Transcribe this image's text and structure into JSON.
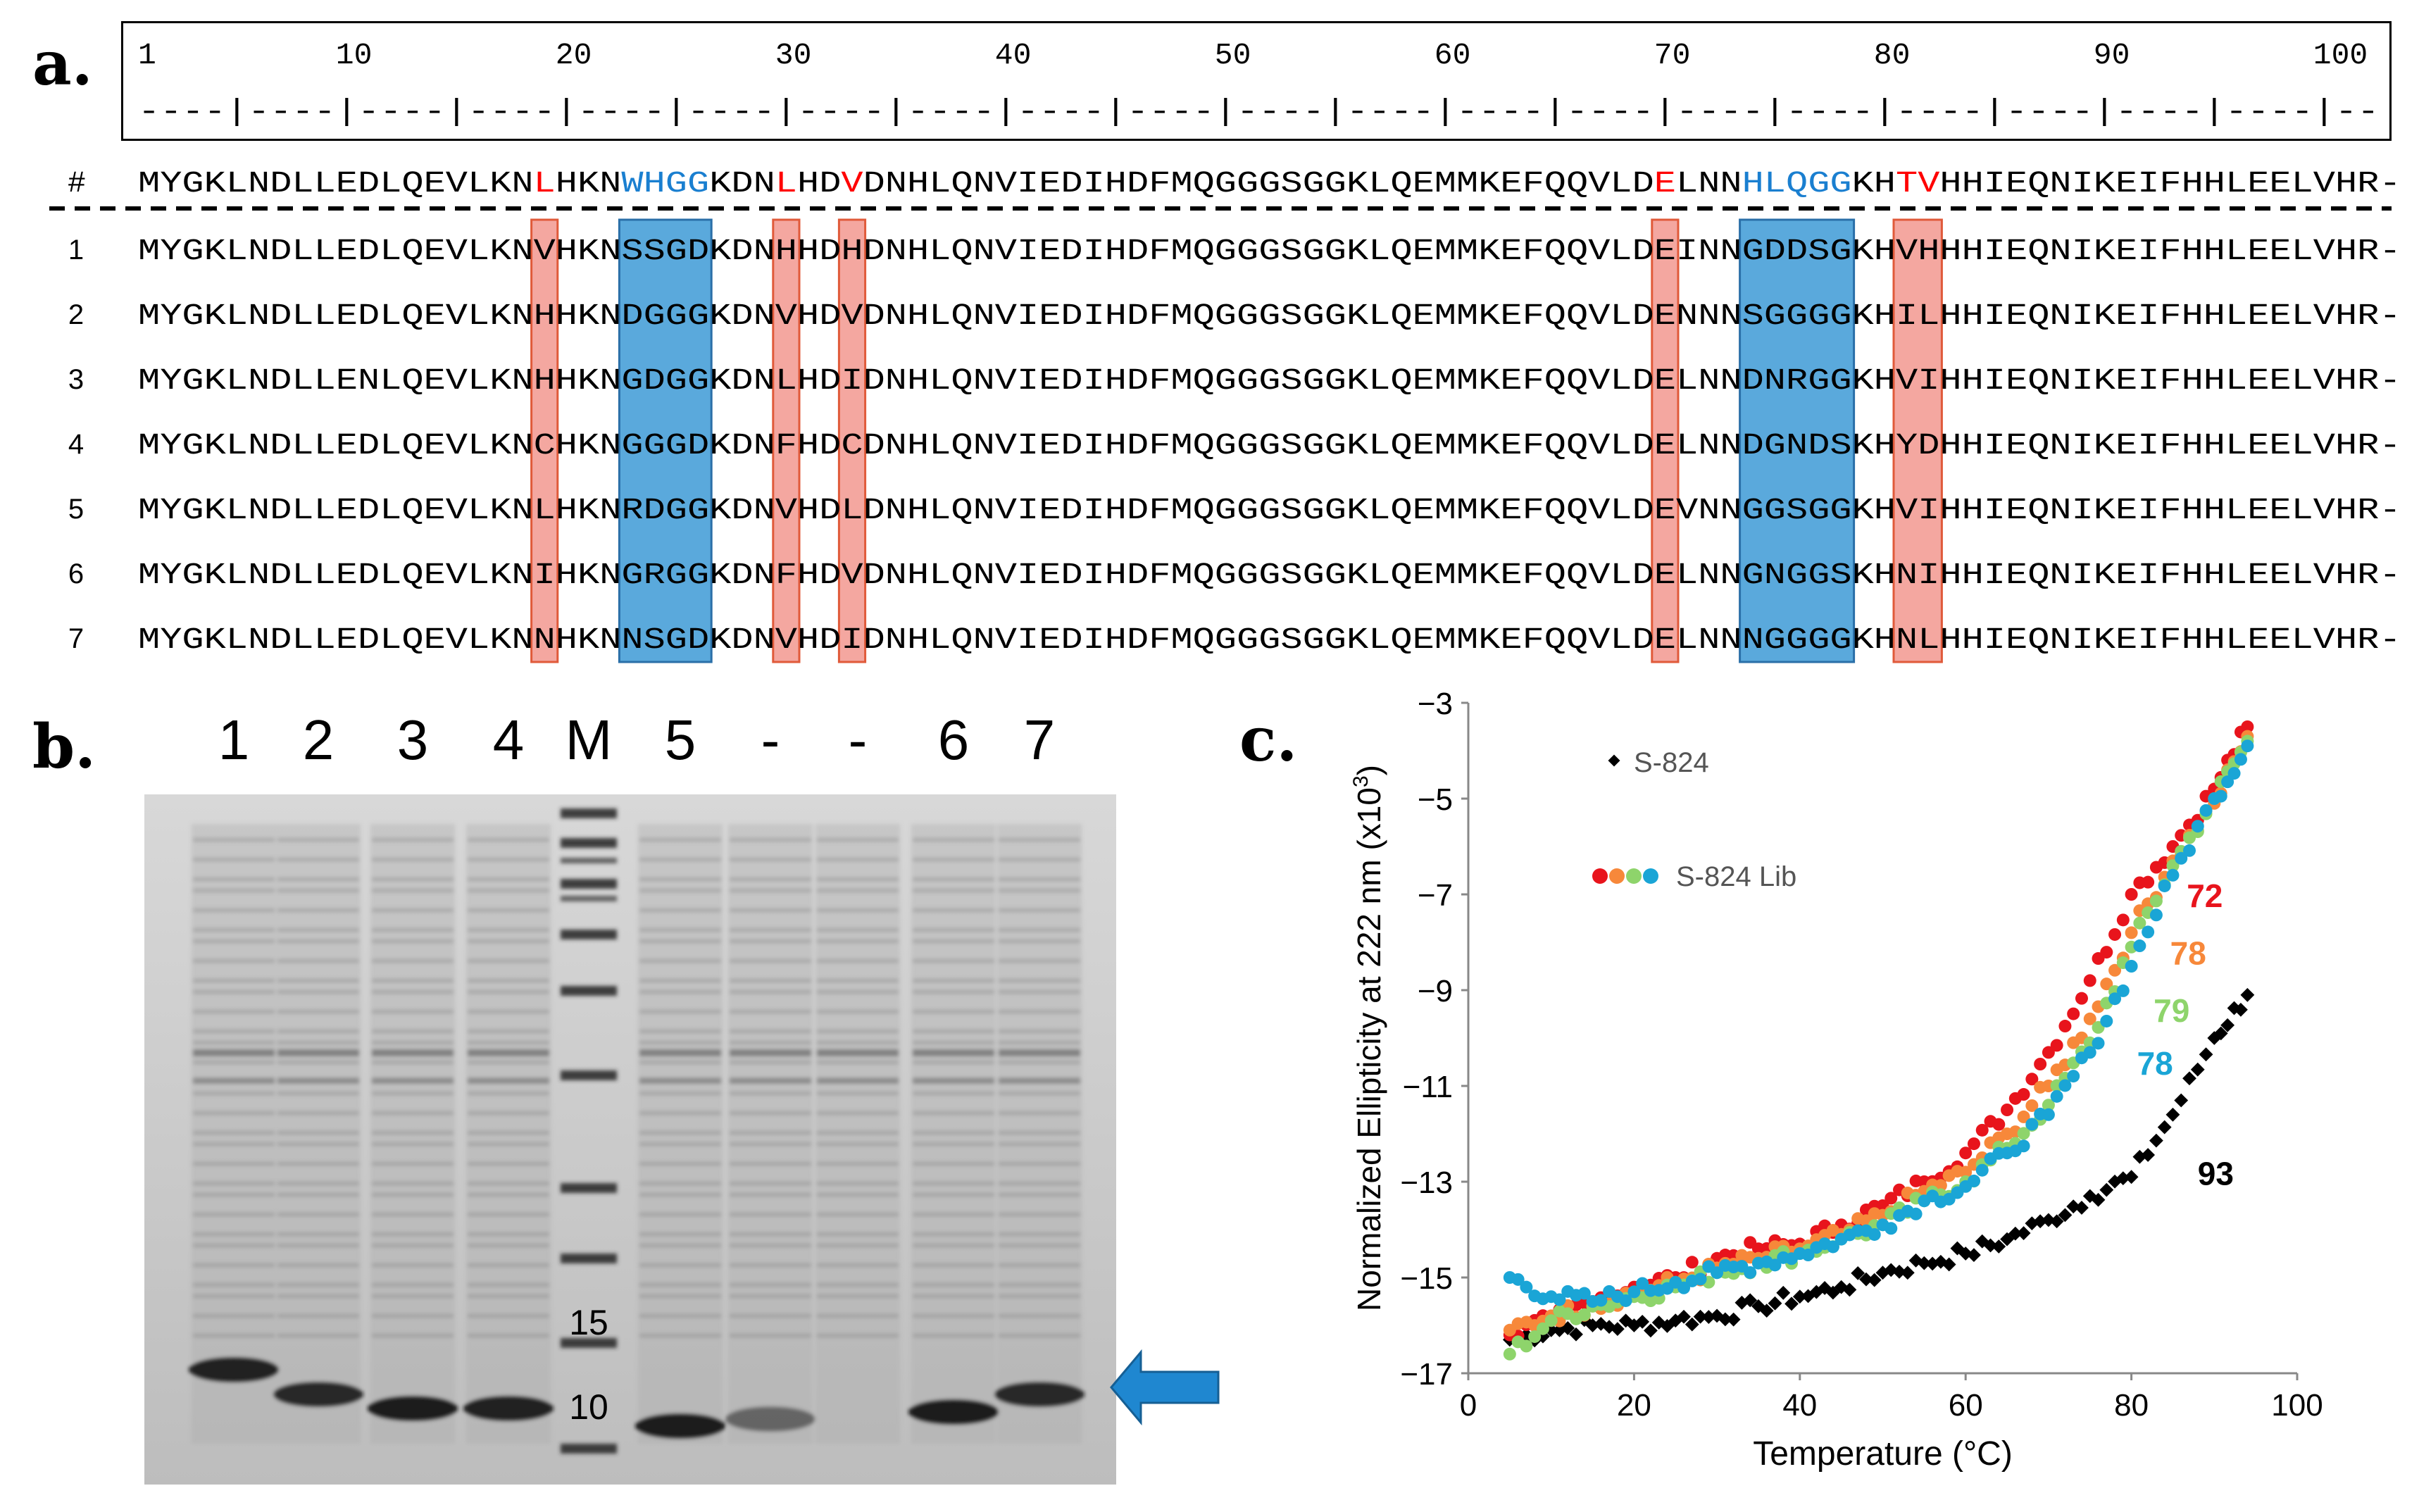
{
  "panel_labels": {
    "a": "a.",
    "b": "b.",
    "c": "c."
  },
  "sequence_alignment": {
    "ruler_numbers": [
      "1",
      "10",
      "20",
      "30",
      "40",
      "50",
      "60",
      "70",
      "80",
      "90",
      "100"
    ],
    "ruler_marks": "----|----|----|----|----|----|----|----|----|----|----|----|----|----|----|----|----|----|----|----|--",
    "reference_label": "#",
    "reference_sequence": "MYGKLNDLLEDLQEVLKNLHKNWHGGKDNLHDVDNHLQNVIEDIHDFMQGGGSGGKLQEMMKEFQQVLDELNNHLQGGKHTVHHIEQNIKEIFHHLEELVHR-",
    "rows": [
      {
        "label": "1",
        "sequence": "MYGKLNDLLEDLQEVLKNVHKNSSGDKDNHHDHDNHLQNVIEDIHDFMQGGGSGGKLQEMMKEFQQVLDEINNGDDSGKHVHHHIEQNIKEIFHHLEELVHR-"
      },
      {
        "label": "2",
        "sequence": "MYGKLNDLLEDLQEVLKNHHKNDGGGKDNVHDVDNHLQNVIEDIHDFMQGGGSGGKLQEMMKEFQQVLDENNNSGGGGKHILHHIEQNIKEIFHHLEELVHR-"
      },
      {
        "label": "3",
        "sequence": "MYGKLNDLLENLQEVLKNHHKNGDGGKDNLHDIDNHLQNVIEDIHDFMQGGGSGGKLQEMMKEFQQVLDELNNDNRGGKHVIHHIEQNIKEIFHHLEELVHR-"
      },
      {
        "label": "4",
        "sequence": "MYGKLNDLLEDLQEVLKNCHKNGGGDKDNFHDCDNHLQNVIEDIHDFMQGGGSGGKLQEMMKEFQQVLDELNNDGNDSKHYDHHIEQNIKEIFHHLEELVHR-"
      },
      {
        "label": "5",
        "sequence": "MYGKLNDLLEDLQEVLKNLHKNRDGGKDNVHDLDNHLQNVIEDIHDFMQGGGSGGKLQEMMKEFQQVLDEVNNGGSGGKHVIHHIEQNIKEIFHHLEELVHR-"
      },
      {
        "label": "6",
        "sequence": "MYGKLNDLLEDLQEVLKNIHKNGRGGKDNFHDVDNHLQNVIEDIHDFMQGGGSGGKLQEMMKEFQQVLDELNNGNGGSKHNIHHIEQNIKEIFHHLEELVHR-"
      },
      {
        "label": "7",
        "sequence": "MYGKLNDLLEDLQEVLKNNHKNNSGDKDNVHDIDNHLQNVIEDIHDFMQGGGSGGKLQEMMKEFQQVLDELNNNGGGGKHNLHHIEQNIKEIFHHLEELVHR-"
      }
    ],
    "colors": {
      "red_highlight": "#f4a7a0",
      "red_border": "#e05a3a",
      "blue_highlight": "#5aa9dc",
      "blue_text": "#1a7fd0",
      "red_text": "#ff0000"
    }
  },
  "gel": {
    "lane_labels": [
      "1",
      "2",
      "3",
      "4",
      "M",
      "5",
      "-",
      "-",
      "6",
      "7"
    ],
    "marker_labels": [
      "15",
      "10"
    ],
    "arrow_color": "#1f87d0"
  },
  "chart_data": {
    "type": "scatter",
    "xlabel": "Temperature (°C)",
    "ylabel": "Normalized Ellipticity at 222 nm (x10",
    "ylabel_superscript": "3",
    "ylabel_close": ")",
    "xlim": [
      0,
      100
    ],
    "ylim": [
      -17,
      -3
    ],
    "x_ticks": [
      "0",
      "20",
      "40",
      "60",
      "80",
      "100"
    ],
    "y_ticks": [
      "-3",
      "-5",
      "-7",
      "-9",
      "-11",
      "-13",
      "-15",
      "-17"
    ],
    "legend": [
      {
        "label": "S-824",
        "marker": "diamond",
        "color": "#000000"
      },
      {
        "label": "S-824 Lib",
        "marker": "circles",
        "colors": [
          "#e8141c",
          "#f7883a",
          "#8ed46b",
          "#1aa5d6"
        ]
      }
    ],
    "annotations": [
      {
        "text": "72",
        "color": "#e8141c"
      },
      {
        "text": "78",
        "color": "#f7883a"
      },
      {
        "text": "79",
        "color": "#8ed46b"
      },
      {
        "text": "78",
        "color": "#1aa5d6"
      },
      {
        "text": "93",
        "color": "#000000"
      }
    ],
    "series": [
      {
        "name": "S-824",
        "color": "#000000",
        "marker": "diamond",
        "x": [
          5,
          10,
          15,
          20,
          25,
          30,
          35,
          40,
          45,
          50,
          55,
          60,
          65,
          70,
          75,
          80,
          85,
          90,
          94
        ],
        "y": [
          -16.3,
          -16.1,
          -16.0,
          -16.0,
          -15.9,
          -15.8,
          -15.6,
          -15.4,
          -15.2,
          -14.9,
          -14.7,
          -14.5,
          -14.2,
          -13.8,
          -13.3,
          -12.9,
          -11.6,
          -10.0,
          -9.1
        ]
      },
      {
        "name": "S-824 Lib (red)",
        "color": "#e8141c",
        "marker": "circle",
        "x": [
          5,
          10,
          15,
          20,
          25,
          30,
          35,
          40,
          45,
          50,
          55,
          60,
          65,
          70,
          75,
          80,
          85,
          90,
          94
        ],
        "y": [
          -16.2,
          -15.9,
          -15.5,
          -15.2,
          -15.0,
          -14.6,
          -14.4,
          -14.3,
          -13.9,
          -13.5,
          -13.0,
          -12.4,
          -11.5,
          -10.3,
          -8.8,
          -7.0,
          -6.0,
          -4.8,
          -3.5
        ]
      },
      {
        "name": "S-824 Lib (orange)",
        "color": "#f7883a",
        "marker": "circle",
        "x": [
          5,
          10,
          15,
          20,
          25,
          30,
          35,
          40,
          45,
          50,
          55,
          60,
          65,
          70,
          75,
          80,
          85,
          90,
          94
        ],
        "y": [
          -16.1,
          -15.8,
          -15.6,
          -15.3,
          -15.1,
          -14.8,
          -14.6,
          -14.4,
          -14.1,
          -13.7,
          -13.2,
          -12.8,
          -12.0,
          -11.0,
          -9.6,
          -7.8,
          -6.3,
          -5.1,
          -3.7
        ]
      },
      {
        "name": "S-824 Lib (green)",
        "color": "#8ed46b",
        "marker": "circle",
        "x": [
          5,
          10,
          15,
          20,
          25,
          30,
          35,
          40,
          45,
          50,
          55,
          60,
          65,
          70,
          75,
          80,
          85,
          90,
          94
        ],
        "y": [
          -16.6,
          -15.9,
          -15.6,
          -15.4,
          -15.2,
          -14.9,
          -14.7,
          -14.5,
          -14.2,
          -13.9,
          -13.4,
          -13.0,
          -12.3,
          -11.4,
          -10.1,
          -8.1,
          -6.4,
          -5.0,
          -3.8
        ]
      },
      {
        "name": "S-824 Lib (blue)",
        "color": "#1aa5d6",
        "marker": "circle",
        "x": [
          5,
          10,
          15,
          20,
          25,
          30,
          35,
          40,
          45,
          50,
          55,
          60,
          65,
          70,
          75,
          80,
          85,
          90,
          94
        ],
        "y": [
          -15.0,
          -15.4,
          -15.5,
          -15.3,
          -15.1,
          -14.9,
          -14.7,
          -14.5,
          -14.2,
          -13.9,
          -13.4,
          -13.1,
          -12.4,
          -11.6,
          -10.3,
          -8.5,
          -6.6,
          -5.0,
          -3.9
        ]
      }
    ]
  }
}
